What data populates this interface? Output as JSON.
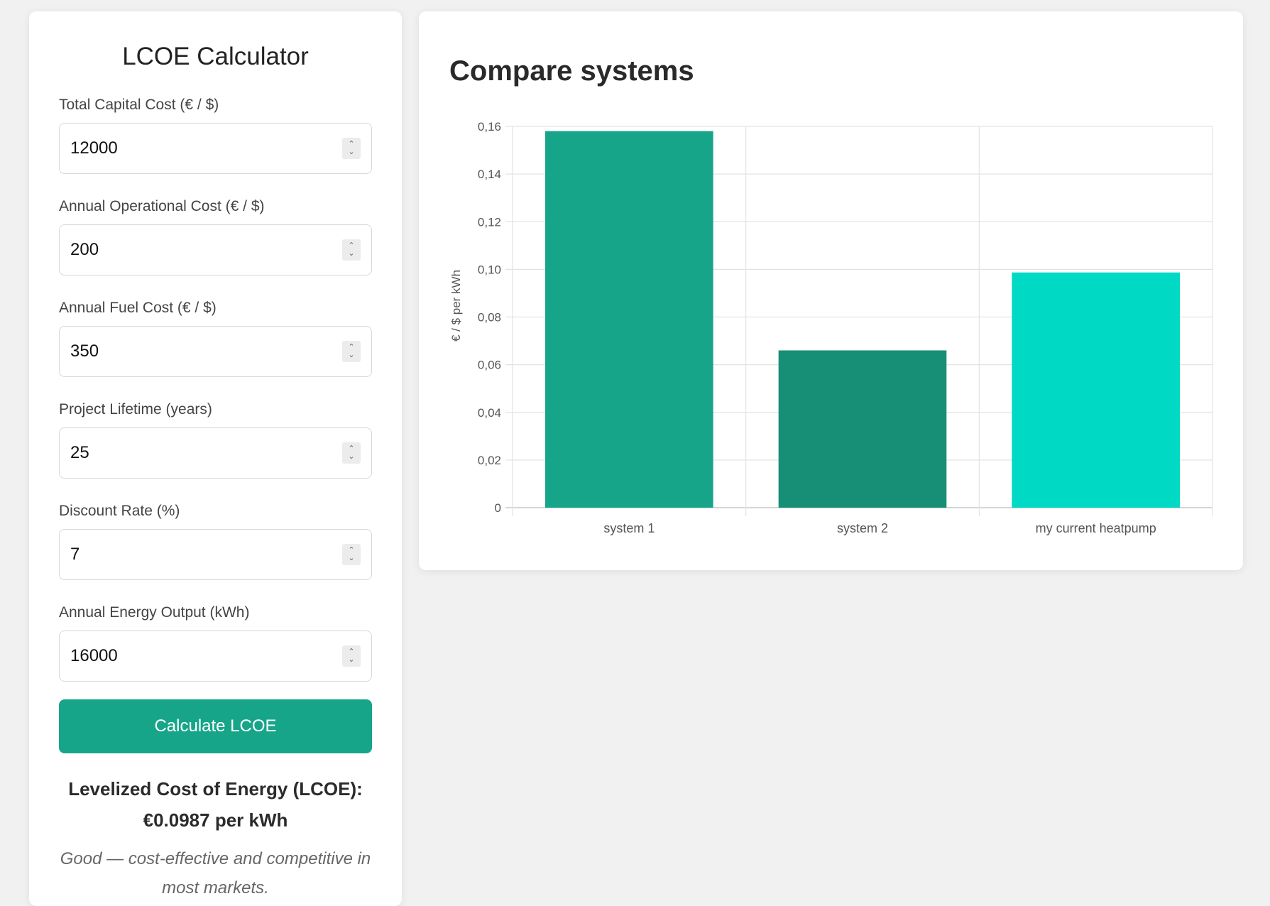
{
  "calculator": {
    "title": "LCOE Calculator",
    "fields": [
      {
        "label": "Total Capital Cost (€ / $)",
        "value": "12000"
      },
      {
        "label": "Annual Operational Cost (€ / $)",
        "value": "200"
      },
      {
        "label": "Annual Fuel Cost (€ / $)",
        "value": "350"
      },
      {
        "label": "Project Lifetime (years)",
        "value": "25"
      },
      {
        "label": "Discount Rate (%)",
        "value": "7"
      },
      {
        "label": "Annual Energy Output (kWh)",
        "value": "16000"
      }
    ],
    "button_label": "Calculate LCOE",
    "result_line1": "Levelized Cost of Energy (LCOE):",
    "result_line2": "€0.0987 per kWh",
    "verdict": "Good — cost-effective and competitive in most markets."
  },
  "compare": {
    "title": "Compare systems"
  },
  "chart_data": {
    "type": "bar",
    "categories": [
      "system 1",
      "system 2",
      "my current heatpump"
    ],
    "values": [
      0.158,
      0.066,
      0.0987
    ],
    "colors": [
      "#17a589",
      "#168f76",
      "#00d9c4"
    ],
    "ylabel": "€ / $ per kWh",
    "ylim": [
      0,
      0.16
    ],
    "yticks": [
      "0",
      "0,02",
      "0,04",
      "0,06",
      "0,08",
      "0,10",
      "0,12",
      "0,14",
      "0,16"
    ],
    "grid": true
  }
}
